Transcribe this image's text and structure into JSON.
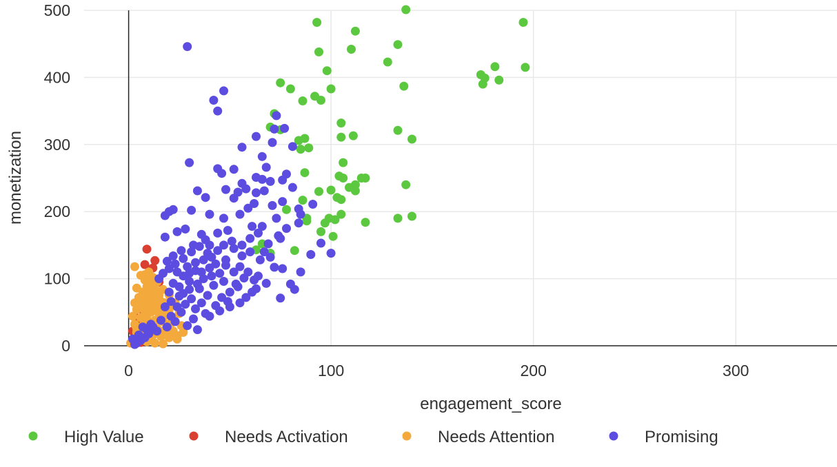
{
  "chart_data": {
    "type": "scatter",
    "title": "",
    "xlabel": "engagement_score",
    "ylabel": "monetization",
    "xlim": [
      -22,
      350
    ],
    "ylim": [
      0,
      500
    ],
    "x_ticks": [
      0,
      100,
      200,
      300
    ],
    "y_ticks": [
      0,
      100,
      200,
      300,
      400,
      500
    ],
    "x_tick_labels": [
      "0",
      "100",
      "200",
      "300"
    ],
    "y_tick_labels": [
      "0",
      "100",
      "200",
      "300",
      "400",
      "500"
    ],
    "grid": true,
    "legend_position": "bottom",
    "series": [
      {
        "name": "High Value",
        "color": "#5cc83f",
        "points": [
          [
            93,
            482
          ],
          [
            137,
            501
          ],
          [
            195,
            482
          ],
          [
            112,
            469
          ],
          [
            133,
            449
          ],
          [
            94,
            438
          ],
          [
            110,
            442
          ],
          [
            128,
            423
          ],
          [
            98,
            410
          ],
          [
            196,
            415
          ],
          [
            181,
            416
          ],
          [
            174,
            404
          ],
          [
            176,
            399
          ],
          [
            175,
            390
          ],
          [
            183,
            396
          ],
          [
            75,
            392
          ],
          [
            80,
            383
          ],
          [
            100,
            383
          ],
          [
            136,
            387
          ],
          [
            92,
            372
          ],
          [
            95,
            366
          ],
          [
            86,
            365
          ],
          [
            72,
            346
          ],
          [
            105,
            332
          ],
          [
            70,
            326
          ],
          [
            133,
            321
          ],
          [
            75,
            322
          ],
          [
            111,
            313
          ],
          [
            140,
            308
          ],
          [
            87,
            309
          ],
          [
            84,
            306
          ],
          [
            105,
            311
          ],
          [
            89,
            295
          ],
          [
            85,
            293
          ],
          [
            106,
            273
          ],
          [
            87,
            258
          ],
          [
            104,
            253
          ],
          [
            115,
            250
          ],
          [
            117,
            250
          ],
          [
            106,
            250
          ],
          [
            112,
            240
          ],
          [
            109,
            236
          ],
          [
            137,
            240
          ],
          [
            100,
            232
          ],
          [
            94,
            230
          ],
          [
            112,
            231
          ],
          [
            103,
            221
          ],
          [
            105,
            218
          ],
          [
            86,
            217
          ],
          [
            78,
            203
          ],
          [
            105,
            196
          ],
          [
            99,
            190
          ],
          [
            88,
            190
          ],
          [
            140,
            193
          ],
          [
            133,
            190
          ],
          [
            117,
            184
          ],
          [
            88,
            186
          ],
          [
            97,
            183
          ],
          [
            102,
            188
          ],
          [
            95,
            170
          ],
          [
            101,
            163
          ],
          [
            63,
            143
          ],
          [
            66,
            152
          ],
          [
            70,
            138
          ],
          [
            82,
            142
          ]
        ]
      },
      {
        "name": "Needs Activation",
        "color": "#d94032",
        "points": [
          [
            9,
            144
          ],
          [
            8,
            121
          ],
          [
            13,
            127
          ],
          [
            12,
            116
          ],
          [
            15,
            95
          ],
          [
            7,
            77
          ],
          [
            10,
            84
          ],
          [
            5,
            66
          ],
          [
            6,
            55
          ],
          [
            3,
            43
          ],
          [
            4,
            32
          ],
          [
            2,
            22
          ],
          [
            3,
            14
          ],
          [
            5,
            10
          ],
          [
            6,
            5
          ]
        ]
      },
      {
        "name": "Needs Attention",
        "color": "#f3a93c",
        "points": [
          [
            3,
            118
          ],
          [
            6,
            105
          ],
          [
            10,
            110
          ],
          [
            12,
            102
          ],
          [
            8,
            98
          ],
          [
            14,
            95
          ],
          [
            4,
            86
          ],
          [
            9,
            88
          ],
          [
            13,
            85
          ],
          [
            7,
            80
          ],
          [
            11,
            78
          ],
          [
            15,
            75
          ],
          [
            5,
            72
          ],
          [
            9,
            70
          ],
          [
            12,
            68
          ],
          [
            16,
            66
          ],
          [
            3,
            64
          ],
          [
            7,
            62
          ],
          [
            10,
            60
          ],
          [
            14,
            58
          ],
          [
            18,
            56
          ],
          [
            4,
            54
          ],
          [
            8,
            52
          ],
          [
            11,
            50
          ],
          [
            15,
            48
          ],
          [
            19,
            46
          ],
          [
            2,
            44
          ],
          [
            6,
            42
          ],
          [
            9,
            40
          ],
          [
            13,
            38
          ],
          [
            17,
            36
          ],
          [
            21,
            34
          ],
          [
            3,
            32
          ],
          [
            7,
            30
          ],
          [
            10,
            28
          ],
          [
            14,
            26
          ],
          [
            18,
            24
          ],
          [
            22,
            22
          ],
          [
            4,
            20
          ],
          [
            8,
            18
          ],
          [
            12,
            16
          ],
          [
            16,
            14
          ],
          [
            20,
            12
          ],
          [
            24,
            10
          ],
          [
            5,
            8
          ],
          [
            9,
            6
          ],
          [
            13,
            4
          ],
          [
            17,
            3
          ],
          [
            2,
            6
          ],
          [
            6,
            12
          ],
          [
            10,
            22
          ],
          [
            12,
            34
          ],
          [
            16,
            44
          ],
          [
            20,
            54
          ],
          [
            18,
            64
          ],
          [
            14,
            72
          ],
          [
            11,
            92
          ],
          [
            8,
            106
          ],
          [
            17,
            84
          ],
          [
            20,
            76
          ],
          [
            23,
            64
          ],
          [
            25,
            48
          ],
          [
            22,
            40
          ],
          [
            26,
            30
          ],
          [
            27,
            20
          ],
          [
            24,
            15
          ],
          [
            19,
            18
          ],
          [
            15,
            22
          ],
          [
            11,
            10
          ],
          [
            7,
            14
          ],
          [
            4,
            26
          ],
          [
            1,
            4
          ]
        ]
      },
      {
        "name": "Promising",
        "color": "#5c4de0",
        "points": [
          [
            29,
            446
          ],
          [
            47,
            380
          ],
          [
            42,
            366
          ],
          [
            44,
            350
          ],
          [
            73,
            343
          ],
          [
            77,
            324
          ],
          [
            72,
            323
          ],
          [
            63,
            312
          ],
          [
            71,
            303
          ],
          [
            56,
            296
          ],
          [
            66,
            282
          ],
          [
            81,
            297
          ],
          [
            30,
            273
          ],
          [
            68,
            266
          ],
          [
            66,
            248
          ],
          [
            52,
            263
          ],
          [
            44,
            264
          ],
          [
            46,
            257
          ],
          [
            78,
            256
          ],
          [
            81,
            236
          ],
          [
            76,
            247
          ],
          [
            70,
            245
          ],
          [
            63,
            251
          ],
          [
            56,
            242
          ],
          [
            48,
            233
          ],
          [
            54,
            229
          ],
          [
            58,
            234
          ],
          [
            63,
            228
          ],
          [
            34,
            231
          ],
          [
            52,
            220
          ],
          [
            67,
            231
          ],
          [
            62,
            212
          ],
          [
            71,
            209
          ],
          [
            76,
            215
          ],
          [
            84,
            204
          ],
          [
            91,
            211
          ],
          [
            85,
            196
          ],
          [
            38,
            221
          ],
          [
            31,
            202
          ],
          [
            20,
            200
          ],
          [
            18,
            194
          ],
          [
            22,
            203
          ],
          [
            40,
            196
          ],
          [
            47,
            190
          ],
          [
            55,
            196
          ],
          [
            59,
            205
          ],
          [
            61,
            178
          ],
          [
            49,
            172
          ],
          [
            44,
            168
          ],
          [
            36,
            166
          ],
          [
            28,
            174
          ],
          [
            24,
            170
          ],
          [
            18,
            162
          ],
          [
            73,
            190
          ],
          [
            66,
            178
          ],
          [
            74,
            164
          ],
          [
            78,
            175
          ],
          [
            75,
            160
          ],
          [
            69,
            152
          ],
          [
            84,
            183
          ],
          [
            95,
            153
          ],
          [
            90,
            136
          ],
          [
            100,
            138
          ],
          [
            60,
            140
          ],
          [
            56,
            134
          ],
          [
            52,
            145
          ],
          [
            65,
            128
          ],
          [
            72,
            117
          ],
          [
            76,
            115
          ],
          [
            55,
            118
          ],
          [
            62,
            98
          ],
          [
            68,
            93
          ],
          [
            63,
            85
          ],
          [
            80,
            92
          ],
          [
            82,
            84
          ],
          [
            75,
            71
          ],
          [
            85,
            110
          ],
          [
            48,
            120
          ],
          [
            45,
            108
          ],
          [
            40,
            116
          ],
          [
            37,
            100
          ],
          [
            33,
            112
          ],
          [
            30,
            96
          ],
          [
            27,
            104
          ],
          [
            25,
            88
          ],
          [
            22,
            93
          ],
          [
            20,
            80
          ],
          [
            35,
            85
          ],
          [
            42,
            90
          ],
          [
            39,
            75
          ],
          [
            31,
            70
          ],
          [
            28,
            62
          ],
          [
            33,
            55
          ],
          [
            26,
            50
          ],
          [
            21,
            44
          ],
          [
            23,
            36
          ],
          [
            36,
            64
          ],
          [
            43,
            60
          ],
          [
            46,
            72
          ],
          [
            50,
            80
          ],
          [
            53,
            92
          ],
          [
            57,
            101
          ],
          [
            49,
            66
          ],
          [
            38,
            48
          ],
          [
            32,
            40
          ],
          [
            29,
            30
          ],
          [
            34,
            24
          ],
          [
            19,
            28
          ],
          [
            14,
            22
          ],
          [
            10,
            18
          ],
          [
            8,
            12
          ],
          [
            6,
            8
          ],
          [
            4,
            4
          ],
          [
            3,
            2
          ],
          [
            7,
            28
          ],
          [
            11,
            32
          ],
          [
            16,
            38
          ],
          [
            24,
            58
          ],
          [
            27,
            78
          ],
          [
            30,
            84
          ],
          [
            34,
            92
          ],
          [
            37,
            128
          ],
          [
            41,
            132
          ],
          [
            44,
            142
          ],
          [
            47,
            150
          ],
          [
            51,
            156
          ],
          [
            40,
            150
          ],
          [
            35,
            148
          ],
          [
            31,
            140
          ],
          [
            27,
            130
          ],
          [
            23,
            122
          ],
          [
            20,
            115
          ],
          [
            17,
            108
          ],
          [
            15,
            100
          ],
          [
            24,
            110
          ],
          [
            29,
            118
          ],
          [
            33,
            124
          ],
          [
            39,
            138
          ],
          [
            43,
            122
          ],
          [
            48,
            128
          ],
          [
            52,
            110
          ],
          [
            56,
            150
          ],
          [
            60,
            160
          ],
          [
            64,
            168
          ],
          [
            38,
            158
          ],
          [
            32,
            150
          ],
          [
            26,
            142
          ],
          [
            22,
            134
          ],
          [
            19,
            126
          ],
          [
            54,
            88
          ],
          [
            58,
            72
          ],
          [
            61,
            80
          ],
          [
            47,
            96
          ],
          [
            41,
            104
          ],
          [
            36,
            110
          ],
          [
            30,
            108
          ],
          [
            25,
            74
          ],
          [
            21,
            66
          ],
          [
            18,
            58
          ],
          [
            40,
            44
          ],
          [
            45,
            52
          ],
          [
            50,
            58
          ],
          [
            55,
            64
          ],
          [
            59,
            110
          ],
          [
            64,
            104
          ],
          [
            67,
            140
          ],
          [
            70,
            132
          ],
          [
            9,
            24
          ],
          [
            5,
            16
          ],
          [
            12,
            28
          ],
          [
            2,
            10
          ]
        ]
      }
    ]
  }
}
